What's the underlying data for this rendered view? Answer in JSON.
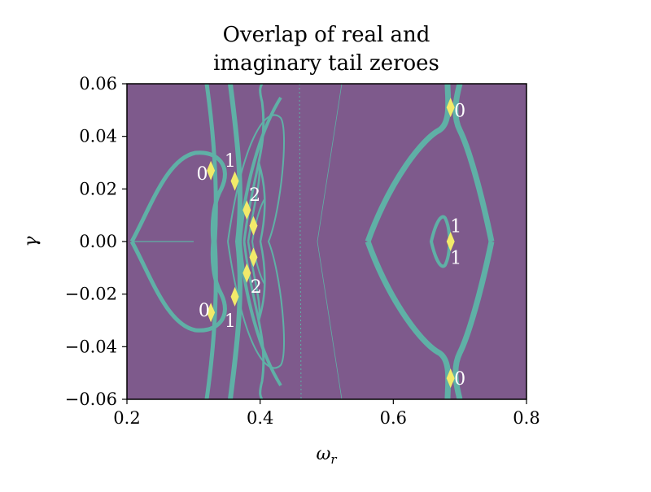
{
  "chart_data": {
    "type": "heatmap",
    "title_line1": "Overlap of real and",
    "title_line2": "imaginary tail zeroes",
    "xlabel": "ω",
    "xlabel_sub": "r",
    "ylabel": "γ",
    "xlim": [
      0.2,
      0.8
    ],
    "ylim": [
      -0.06,
      0.06
    ],
    "xticks": [
      0.2,
      0.4,
      0.6,
      0.8
    ],
    "xtick_labels": [
      "0.2",
      "0.4",
      "0.6",
      "0.8"
    ],
    "yticks": [
      0.06,
      0.04,
      0.02,
      0.0,
      -0.02,
      -0.04,
      -0.06
    ],
    "ytick_labels": [
      "0.06",
      "0.04",
      "0.02",
      "0.00",
      "−0.02",
      "−0.04",
      "−0.06"
    ],
    "colors": {
      "background": "#7e5a8c",
      "single_zero": "#5fb0a6",
      "overlap": "#f2ea6a",
      "annotation": "#ffffff"
    },
    "annotations": [
      {
        "text": "0",
        "x": 0.313,
        "y": 0.026
      },
      {
        "text": "1",
        "x": 0.355,
        "y": 0.031
      },
      {
        "text": "2",
        "x": 0.392,
        "y": 0.018
      },
      {
        "text": "0",
        "x": 0.316,
        "y": -0.026
      },
      {
        "text": "1",
        "x": 0.355,
        "y": -0.03
      },
      {
        "text": "2",
        "x": 0.394,
        "y": -0.017
      },
      {
        "text": "0",
        "x": 0.7,
        "y": 0.05
      },
      {
        "text": "1",
        "x": 0.694,
        "y": 0.006
      },
      {
        "text": "1",
        "x": 0.694,
        "y": -0.006
      },
      {
        "text": "0",
        "x": 0.7,
        "y": -0.052
      }
    ],
    "overlap_points": [
      {
        "x": 0.326,
        "y": 0.027
      },
      {
        "x": 0.326,
        "y": -0.027
      },
      {
        "x": 0.362,
        "y": 0.023
      },
      {
        "x": 0.362,
        "y": -0.021
      },
      {
        "x": 0.38,
        "y": 0.012
      },
      {
        "x": 0.38,
        "y": -0.012
      },
      {
        "x": 0.39,
        "y": 0.006
      },
      {
        "x": 0.39,
        "y": -0.006
      },
      {
        "x": 0.686,
        "y": 0.051
      },
      {
        "x": 0.686,
        "y": -0.052
      },
      {
        "x": 0.686,
        "y": 0.0
      }
    ]
  }
}
